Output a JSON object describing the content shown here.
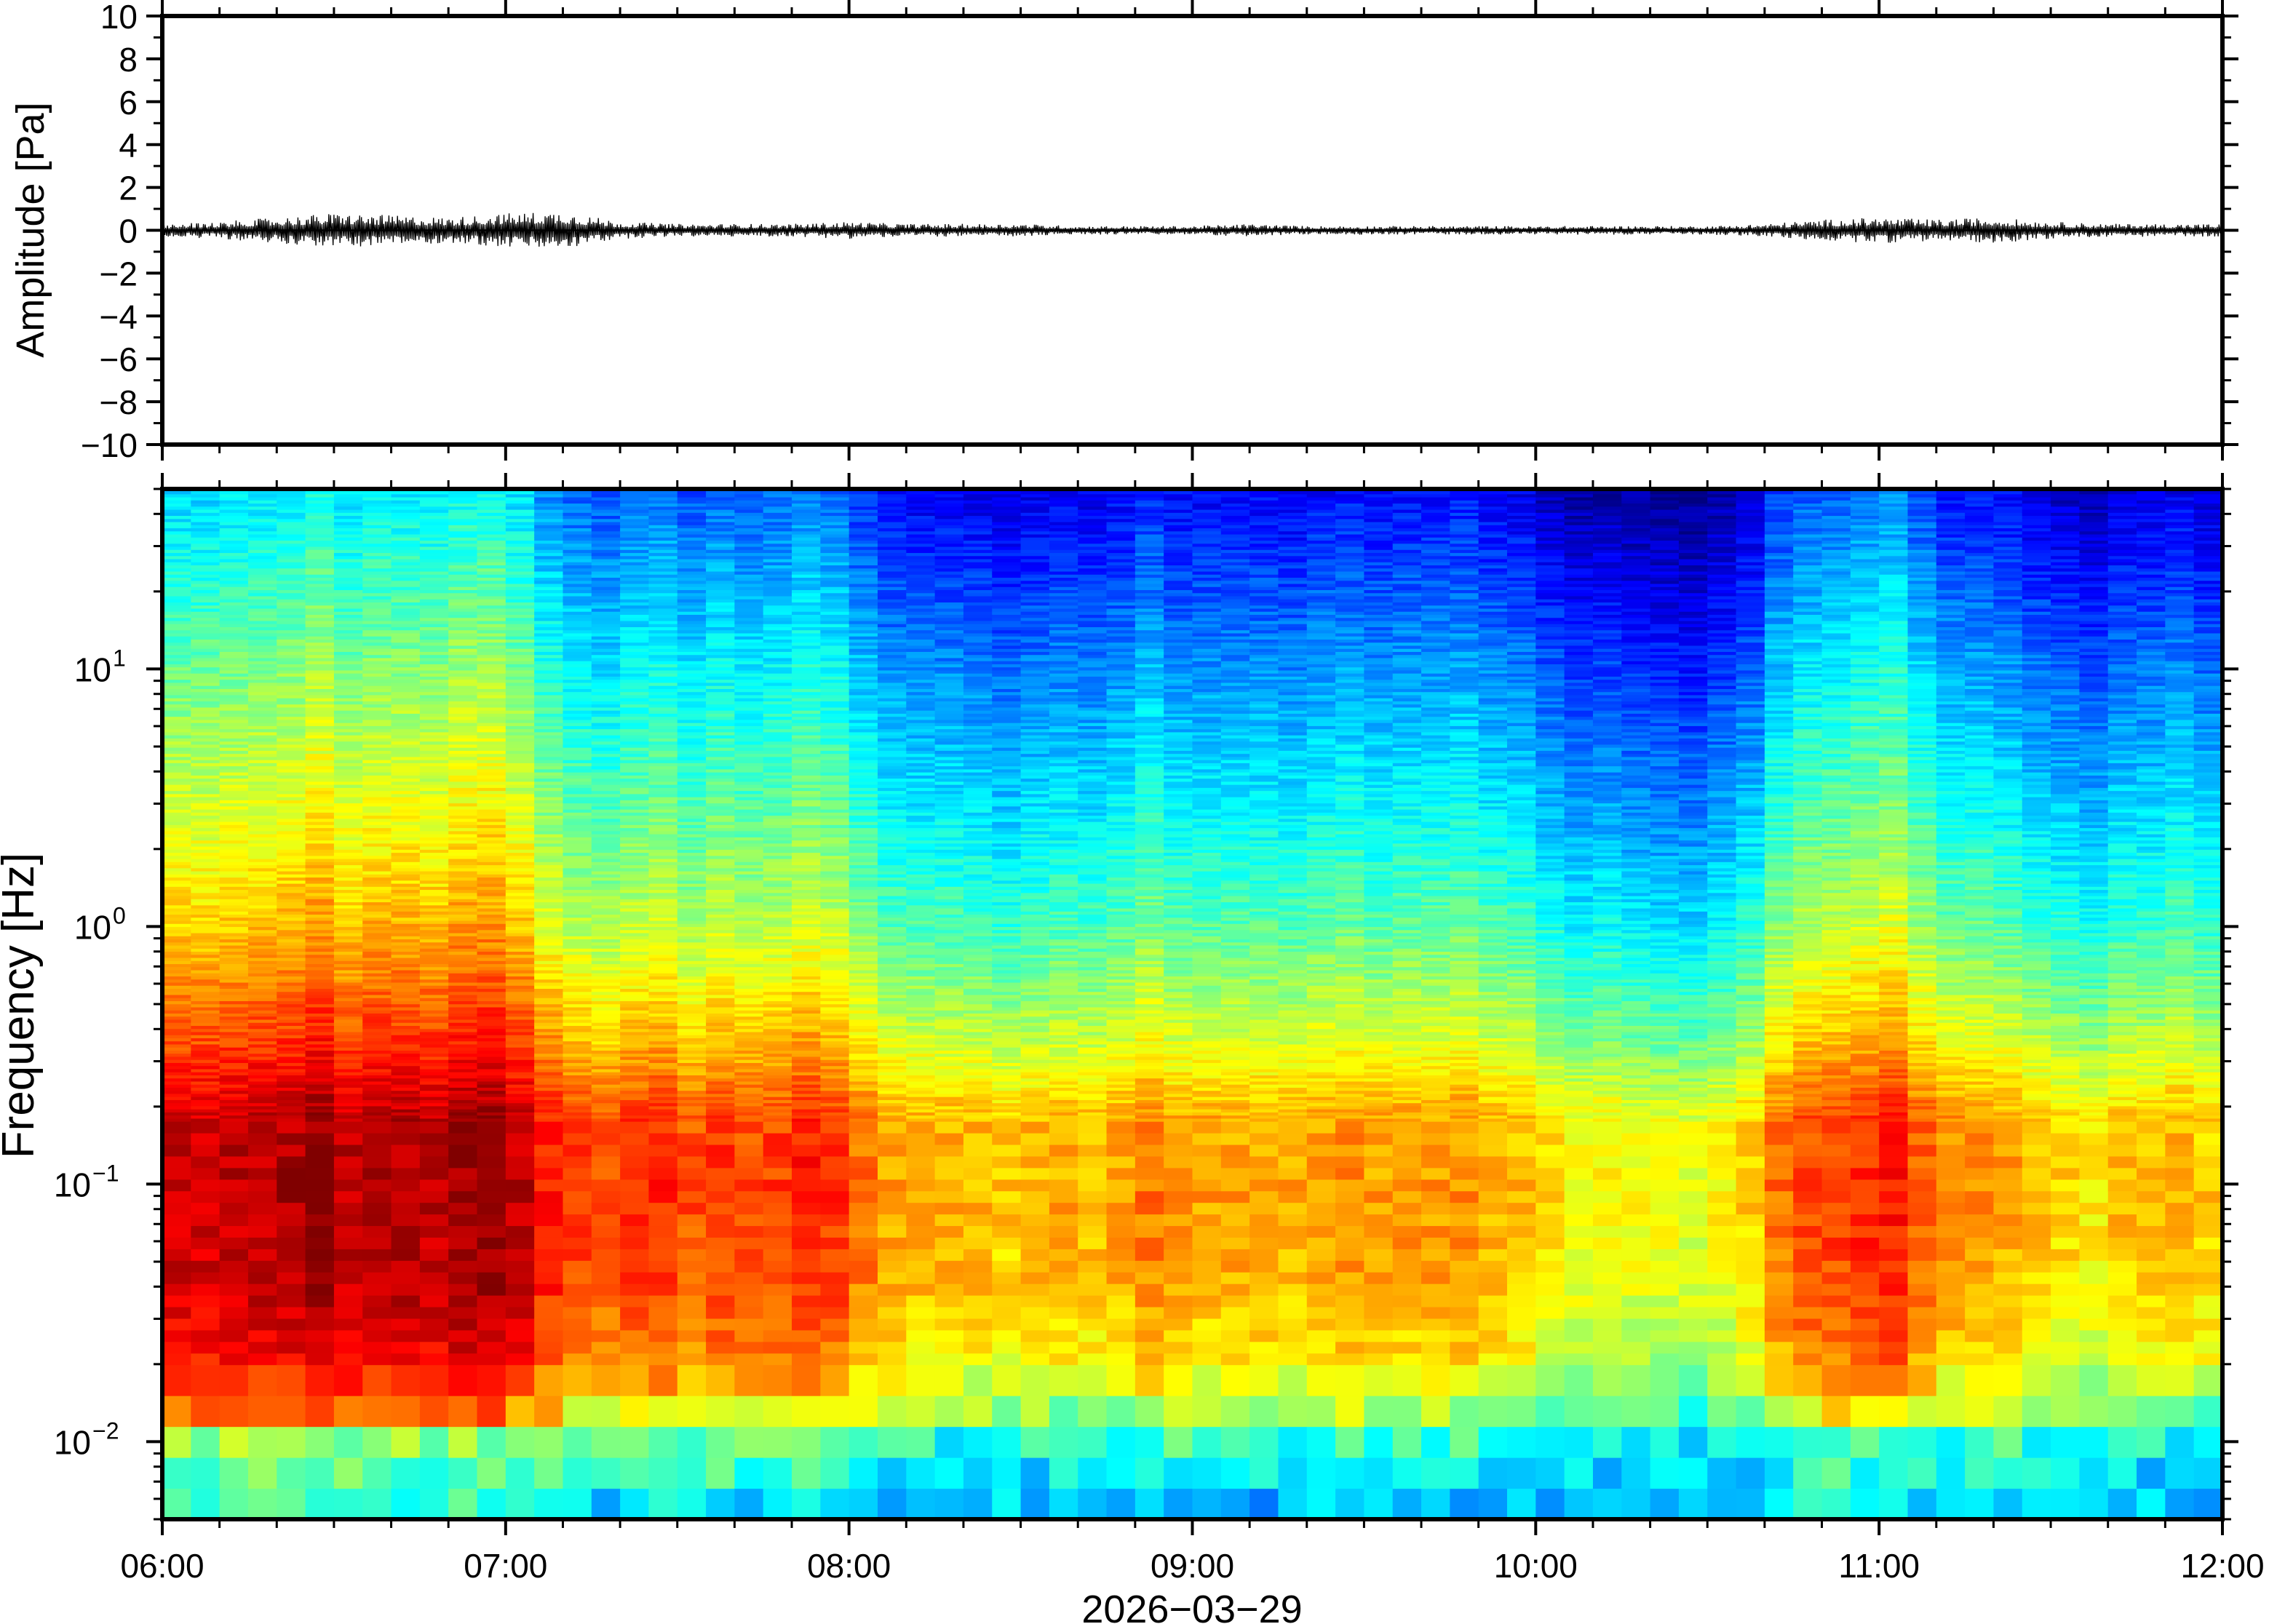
{
  "chart_data": [
    {
      "type": "line",
      "panel": "waveform",
      "ylabel": "Amplitude [Pa]",
      "ylim": [
        -10,
        10
      ],
      "yticks": [
        10,
        8,
        6,
        4,
        2,
        0,
        -2,
        -4,
        -6,
        -8,
        -10
      ],
      "ytick_labels": [
        "10",
        "8",
        "6",
        "4",
        "2",
        "0",
        "−2",
        "−4",
        "−6",
        "−8",
        "−10"
      ],
      "x_range": [
        "06:00",
        "12:00"
      ],
      "series": [
        {
          "x": [
            "06:00",
            "06:10",
            "06:20",
            "06:30",
            "06:40",
            "06:50",
            "07:00",
            "07:10",
            "07:20",
            "07:30",
            "07:40",
            "07:50",
            "08:00",
            "08:10",
            "08:20",
            "08:30",
            "08:40",
            "08:50",
            "09:00",
            "09:10",
            "09:20",
            "09:30",
            "09:40",
            "09:50",
            "10:00",
            "10:10",
            "10:20",
            "10:30",
            "10:40",
            "10:50",
            "11:00",
            "11:10",
            "11:20",
            "11:30",
            "11:40",
            "11:50",
            "12:00"
          ],
          "envelope": [
            0.3,
            0.4,
            0.6,
            0.8,
            0.7,
            0.6,
            0.8,
            0.9,
            0.4,
            0.3,
            0.3,
            0.3,
            0.4,
            0.3,
            0.3,
            0.3,
            0.2,
            0.2,
            0.2,
            0.3,
            0.2,
            0.2,
            0.2,
            0.2,
            0.2,
            0.2,
            0.2,
            0.2,
            0.3,
            0.5,
            0.6,
            0.5,
            0.6,
            0.4,
            0.3,
            0.3,
            0.3
          ]
        }
      ]
    },
    {
      "type": "heatmap",
      "panel": "spectrogram",
      "ylabel": "Frequency [Hz]",
      "xlabel": "2026−03−29",
      "y_scale": "log",
      "ylim": [
        0.005,
        50
      ],
      "yticks": [
        {
          "base": "10",
          "exp": "1"
        },
        {
          "base": "10",
          "exp": "0"
        },
        {
          "base": "10",
          "exp": "−1"
        },
        {
          "base": "10",
          "exp": "−2"
        }
      ],
      "xticks": [
        "06:00",
        "07:00",
        "08:00",
        "09:00",
        "10:00",
        "11:00",
        "12:00"
      ],
      "colormap": "jet",
      "column_minutes": 5,
      "activity": [
        0.25,
        0.25,
        0.26,
        0.27,
        0.28,
        0.31,
        0.26,
        0.28,
        0.28,
        0.27,
        0.3,
        0.31,
        0.26,
        0.18,
        0.14,
        0.12,
        0.15,
        0.16,
        0.12,
        0.15,
        0.13,
        0.14,
        0.17,
        0.15,
        0.09,
        0.04,
        0.03,
        0.03,
        0.02,
        0.0,
        0.02,
        0.03,
        0.02,
        0.04,
        0.08,
        0.04,
        0.04,
        0.04,
        0.04,
        0.03,
        0.05,
        0.06,
        0.04,
        0.05,
        0.05,
        0.06,
        0.03,
        0.02,
        -0.02,
        -0.05,
        -0.04,
        -0.06,
        -0.07,
        -0.08,
        -0.05,
        -0.01,
        0.09,
        0.13,
        0.14,
        0.16,
        0.18,
        0.11,
        0.06,
        0.06,
        0.04,
        0.01,
        -0.01,
        -0.03,
        0.01,
        0.01,
        0.03,
        0.0
      ]
    }
  ]
}
